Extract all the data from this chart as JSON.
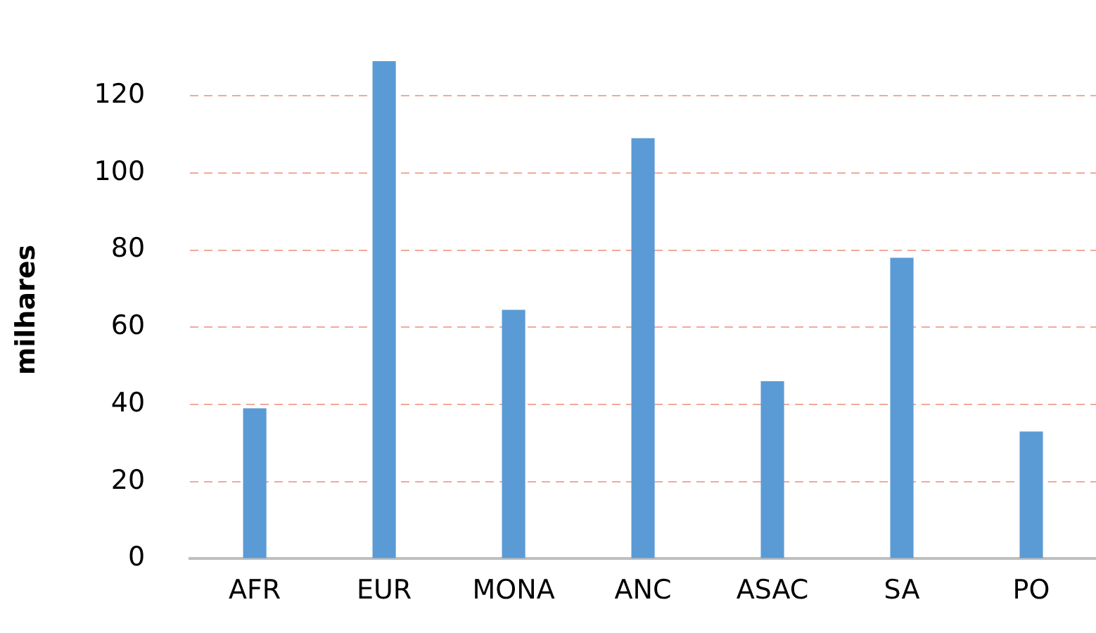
{
  "chart_data": {
    "type": "bar",
    "ylabel": "milhares",
    "categories": [
      "AFR",
      "EUR",
      "MONA",
      "ANC",
      "ASAC",
      "SA",
      "PO"
    ],
    "series": [
      {
        "color": "#5b9bd5",
        "values": [
          39,
          129,
          64.5,
          109,
          46,
          78,
          33
        ]
      }
    ],
    "ylim": [
      0,
      129
    ],
    "yticks": [
      0,
      20,
      40,
      60,
      80,
      100,
      120
    ],
    "grid": "y",
    "legend": false
  }
}
